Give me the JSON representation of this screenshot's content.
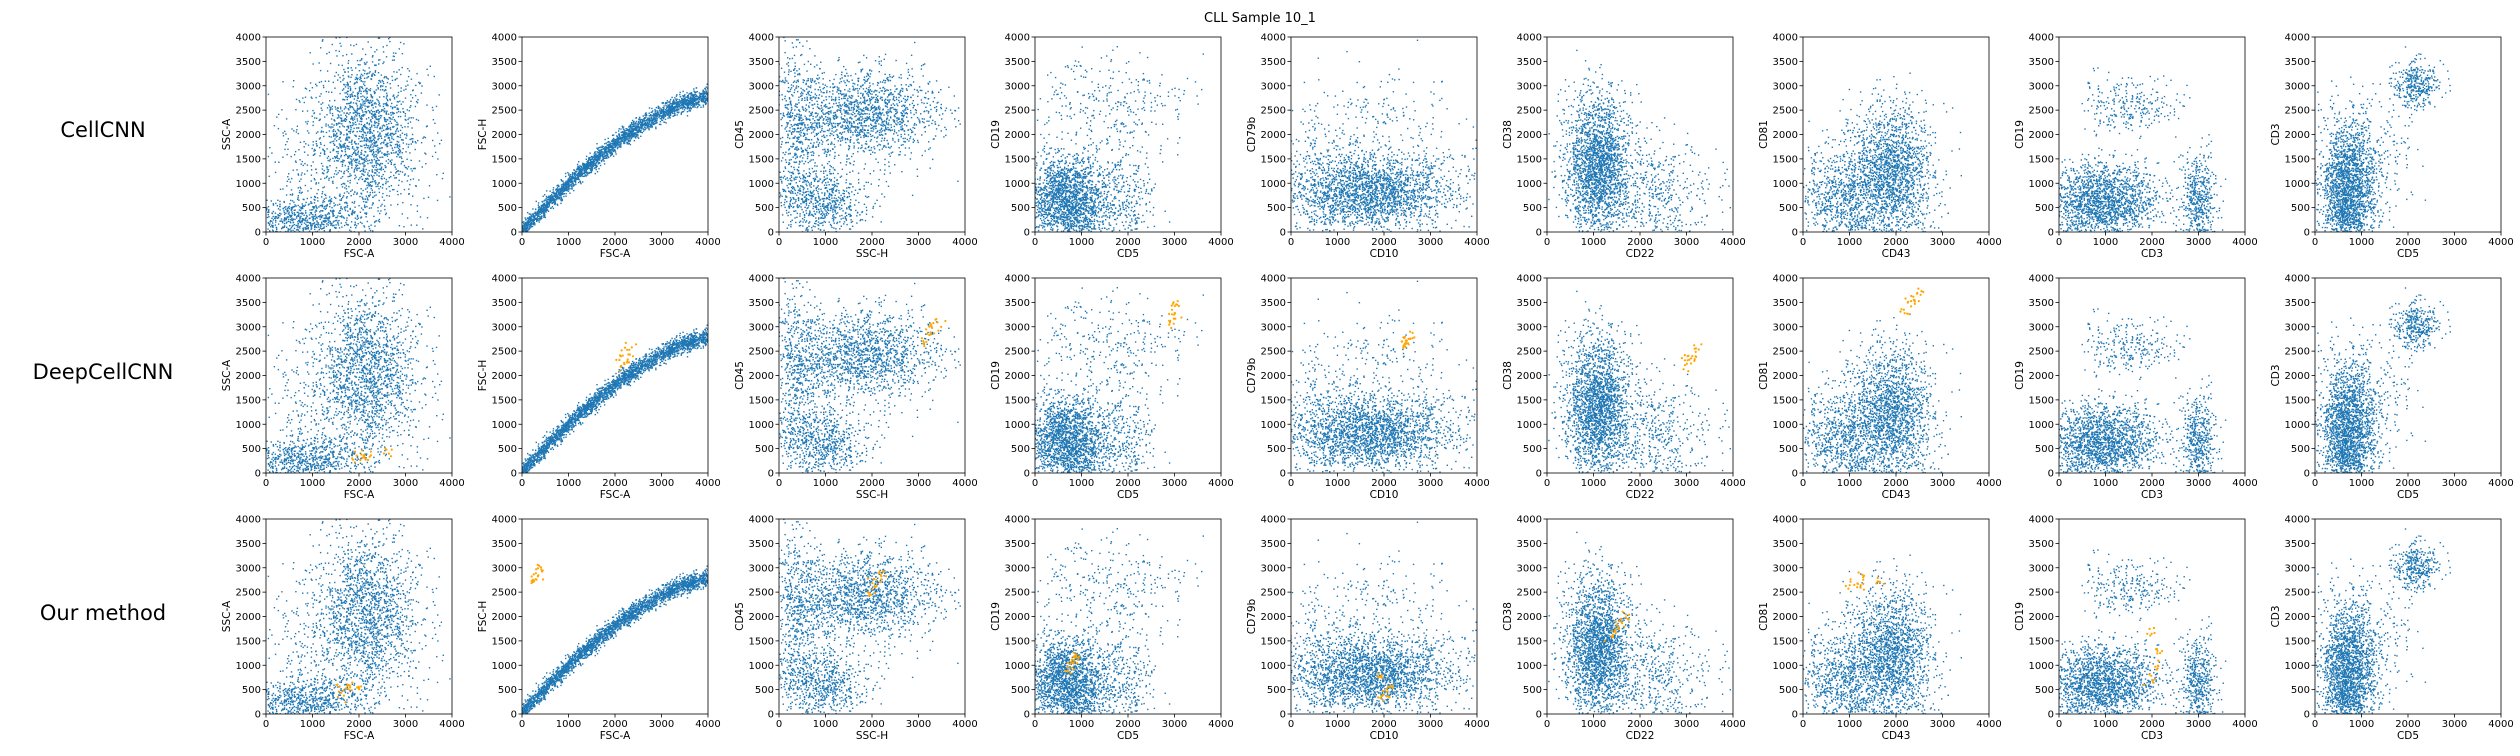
{
  "figure_title": "CLL Sample 10_1",
  "rows": [
    "CellCNN",
    "DeepCellCNN",
    "Our method"
  ],
  "colors": {
    "population": "#1f77b4",
    "selected": "#ffa500",
    "axes": "#000000"
  },
  "chart_data": {
    "type": "scatter",
    "title": "CLL Sample 10_1",
    "xlim": [
      0,
      4000
    ],
    "ylim": [
      0,
      4000
    ],
    "ticks": [
      0,
      500,
      1000,
      1500,
      2000,
      2500,
      3000,
      3500,
      4000
    ],
    "xtick_labels": [
      "0",
      "1000",
      "2000",
      "3000",
      "4000"
    ],
    "ytick_labels": [
      "0",
      "500",
      "1000",
      "1500",
      "2000",
      "2500",
      "3000",
      "3500",
      "4000"
    ],
    "panels": [
      {
        "x": "FSC-A",
        "y": "SSC-A"
      },
      {
        "x": "FSC-A",
        "y": "FSC-H"
      },
      {
        "x": "SSC-H",
        "y": "CD45"
      },
      {
        "x": "CD5",
        "y": "CD19"
      },
      {
        "x": "CD10",
        "y": "CD79b"
      },
      {
        "x": "CD22",
        "y": "CD38"
      },
      {
        "x": "CD43",
        "y": "CD81"
      },
      {
        "x": "CD3",
        "y": "CD19"
      },
      {
        "x": "CD5",
        "y": "CD3"
      }
    ],
    "series": [
      {
        "name": "CellCNN",
        "selected_cells": []
      },
      {
        "name": "DeepCellCNN",
        "selected_cells": [
          [
            1900,
            300
          ],
          [
            2200,
            400
          ],
          [
            2600,
            450
          ],
          [
            2100,
            350
          ],
          [
            2100,
            2200
          ],
          [
            2200,
            2400
          ],
          [
            2300,
            2600
          ],
          [
            2250,
            2300
          ],
          [
            3150,
            2700
          ],
          [
            3300,
            3000
          ],
          [
            3400,
            3100
          ],
          [
            3250,
            2900
          ],
          [
            2900,
            3100
          ],
          [
            3000,
            3300
          ],
          [
            3100,
            3500
          ],
          [
            2950,
            3200
          ],
          [
            2400,
            2600
          ],
          [
            2500,
            2700
          ],
          [
            2600,
            2800
          ],
          [
            2450,
            2650
          ],
          [
            3000,
            2200
          ],
          [
            3100,
            2400
          ],
          [
            3200,
            2600
          ],
          [
            3050,
            2300
          ],
          [
            2200,
            3300
          ],
          [
            2300,
            3500
          ],
          [
            2500,
            3700
          ],
          [
            2400,
            3600
          ]
        ]
      },
      {
        "name": "Our method",
        "selected_cells": [
          [
            1600,
            500
          ],
          [
            1800,
            600
          ],
          [
            2000,
            550
          ],
          [
            1700,
            450
          ],
          [
            200,
            2700
          ],
          [
            300,
            2900
          ],
          [
            400,
            3000
          ],
          [
            350,
            2800
          ],
          [
            2000,
            2600
          ],
          [
            2100,
            2800
          ],
          [
            2200,
            2900
          ],
          [
            1950,
            2500
          ],
          [
            800,
            1000
          ],
          [
            900,
            1200
          ],
          [
            700,
            900
          ],
          [
            850,
            1100
          ],
          [
            2000,
            300
          ],
          [
            2100,
            600
          ],
          [
            1900,
            800
          ],
          [
            2050,
            450
          ],
          [
            1500,
            1800
          ],
          [
            1700,
            2000
          ],
          [
            1400,
            1600
          ],
          [
            1600,
            1900
          ],
          [
            1000,
            2700
          ],
          [
            1300,
            2800
          ],
          [
            1600,
            2700
          ],
          [
            1200,
            2600
          ],
          [
            2000,
            700
          ],
          [
            2100,
            1300
          ],
          [
            2000,
            1700
          ],
          [
            2100,
            1000
          ]
        ]
      }
    ]
  }
}
